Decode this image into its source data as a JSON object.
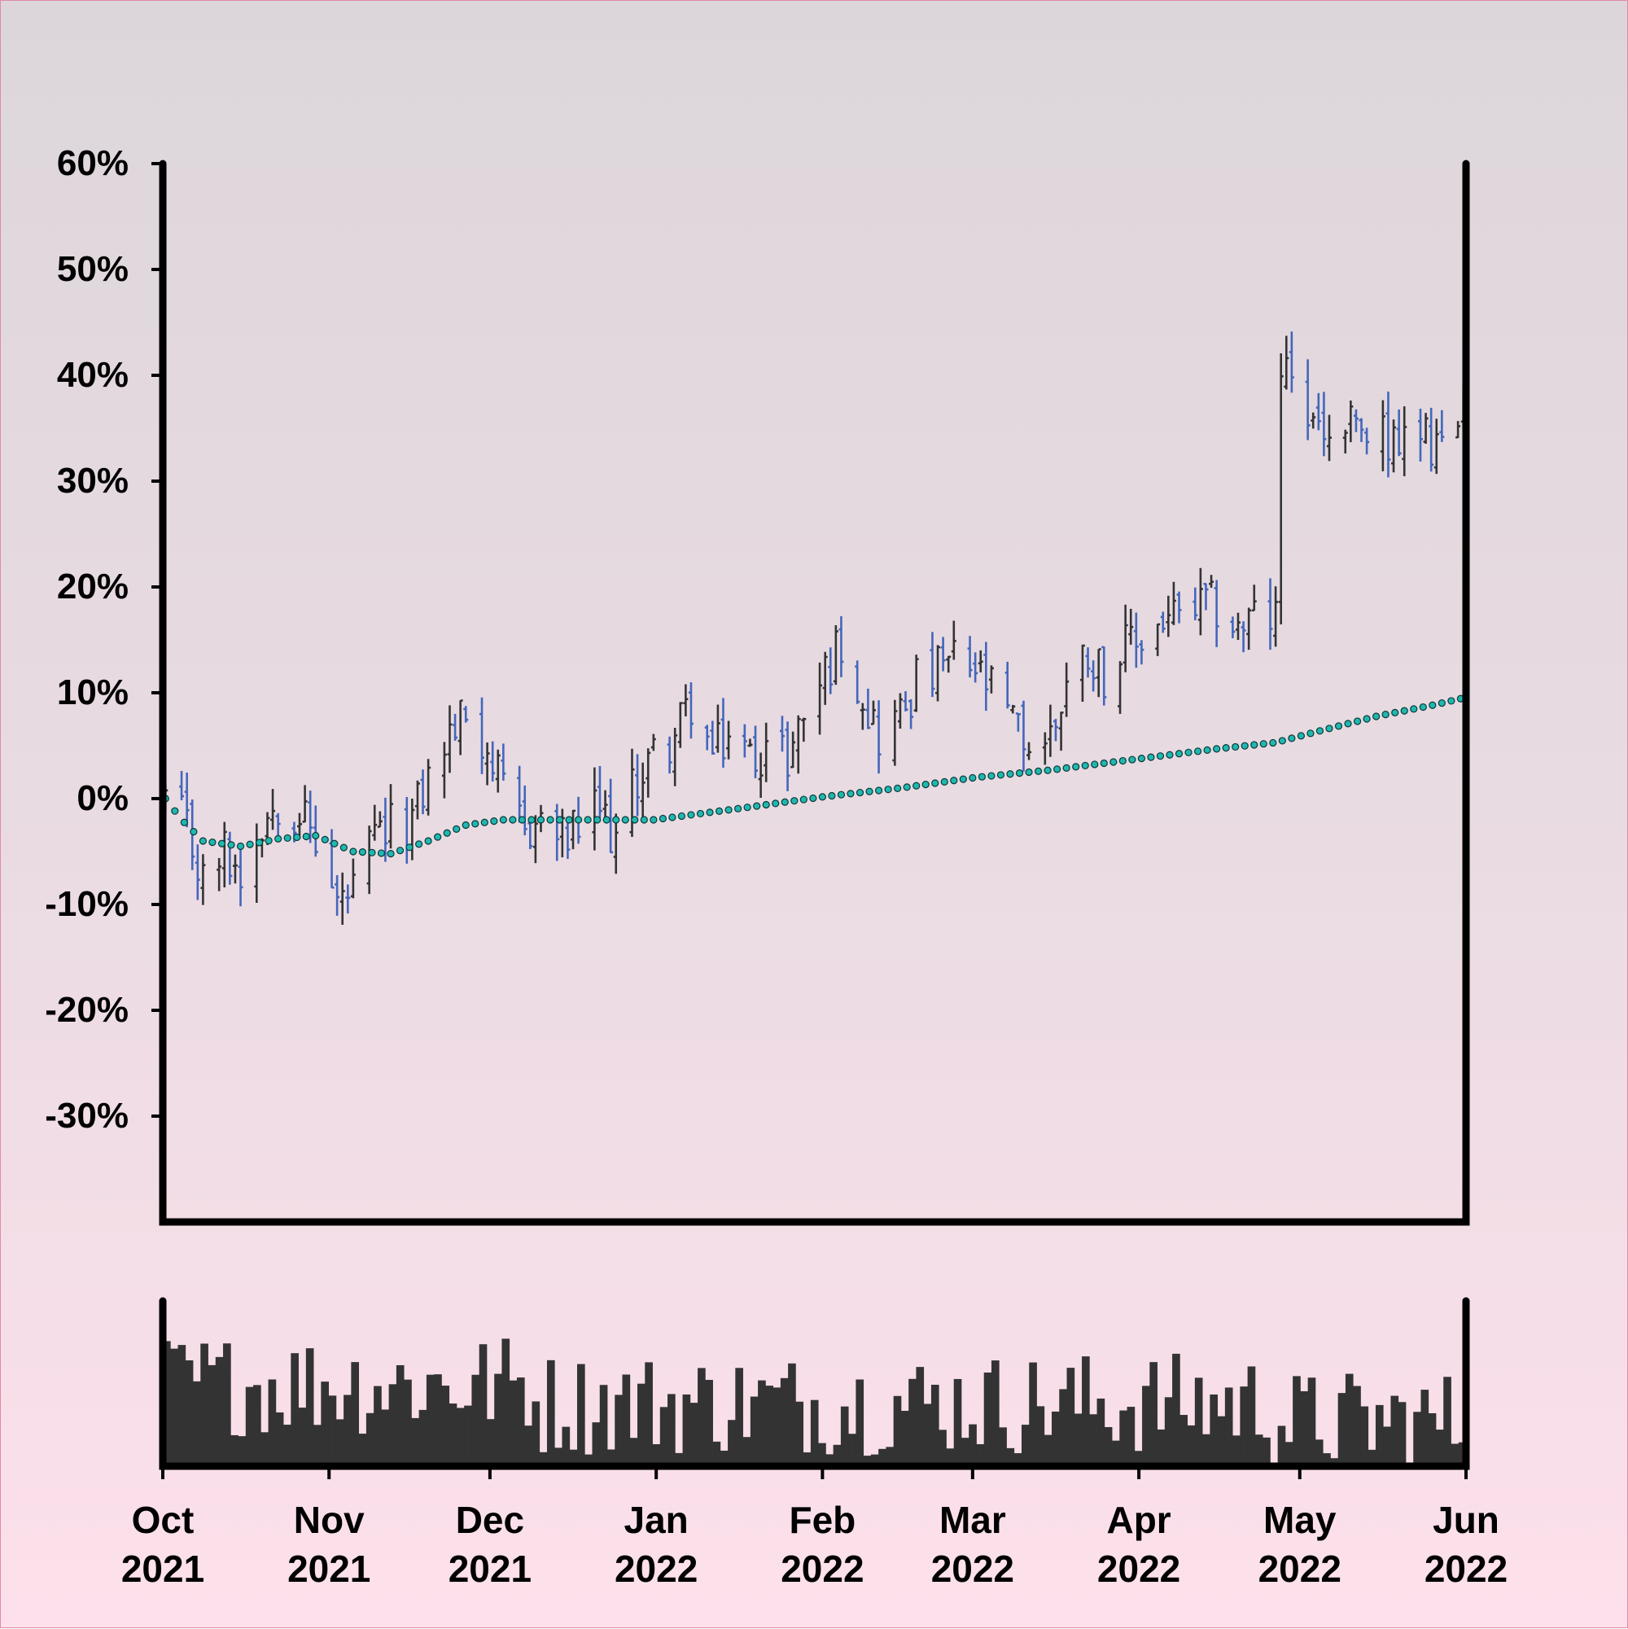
{
  "chart_data": {
    "type": "ohlc",
    "y_axis": {
      "format": "percent",
      "ylim": [
        -40,
        60
      ],
      "ticks": [
        "60%",
        "50%",
        "40%",
        "30%",
        "20%",
        "10%",
        "0%",
        "-10%",
        "-20%",
        "-30%"
      ],
      "tick_values": [
        60,
        50,
        40,
        30,
        20,
        10,
        0,
        -10,
        -20,
        -30
      ]
    },
    "x_axis": {
      "range": [
        "2021-10-01",
        "2022-06-01"
      ],
      "ticks": [
        {
          "date": "2021-10-01",
          "month": "Oct",
          "year": "2021"
        },
        {
          "date": "2021-11-01",
          "month": "Nov",
          "year": "2021"
        },
        {
          "date": "2021-12-01",
          "month": "Dec",
          "year": "2021"
        },
        {
          "date": "2022-01-01",
          "month": "Jan",
          "year": "2022"
        },
        {
          "date": "2022-02-01",
          "month": "Feb",
          "year": "2022"
        },
        {
          "date": "2022-03-01",
          "month": "Mar",
          "year": "2022"
        },
        {
          "date": "2022-04-01",
          "month": "Apr",
          "year": "2022"
        },
        {
          "date": "2022-05-01",
          "month": "May",
          "year": "2022"
        },
        {
          "date": "2022-06-01",
          "month": "Jun",
          "year": "2022"
        }
      ]
    },
    "price_trend": [
      [
        "2021-10-01",
        0
      ],
      [
        "2021-10-05",
        -3
      ],
      [
        "2021-10-08",
        -8
      ],
      [
        "2021-10-12",
        -5
      ],
      [
        "2021-10-15",
        -7
      ],
      [
        "2021-10-19",
        -2
      ],
      [
        "2021-10-22",
        0
      ],
      [
        "2021-10-26",
        -1
      ],
      [
        "2021-10-29",
        -4
      ],
      [
        "2021-11-02",
        -10
      ],
      [
        "2021-11-05",
        -9
      ],
      [
        "2021-11-09",
        -4
      ],
      [
        "2021-11-12",
        -3
      ],
      [
        "2021-11-16",
        -2
      ],
      [
        "2021-11-19",
        2
      ],
      [
        "2021-11-23",
        6
      ],
      [
        "2021-11-26",
        8
      ],
      [
        "2021-11-30",
        5
      ],
      [
        "2021-12-03",
        0
      ],
      [
        "2021-12-07",
        -3
      ],
      [
        "2021-12-10",
        -2
      ],
      [
        "2021-12-14",
        -4
      ],
      [
        "2021-12-17",
        -3
      ],
      [
        "2021-12-21",
        -1
      ],
      [
        "2021-12-24",
        -4
      ],
      [
        "2021-12-28",
        2
      ],
      [
        "2021-12-31",
        4
      ],
      [
        "2022-01-04",
        6
      ],
      [
        "2022-01-07",
        9
      ],
      [
        "2022-01-11",
        4
      ],
      [
        "2022-01-14",
        6
      ],
      [
        "2022-01-18",
        4
      ],
      [
        "2022-01-21",
        5
      ],
      [
        "2022-01-25",
        4
      ],
      [
        "2022-01-28",
        8
      ],
      [
        "2022-02-01",
        12
      ],
      [
        "2022-02-04",
        15
      ],
      [
        "2022-02-08",
        10
      ],
      [
        "2022-02-11",
        6
      ],
      [
        "2022-02-15",
        8
      ],
      [
        "2022-02-18",
        11
      ],
      [
        "2022-02-22",
        12
      ],
      [
        "2022-02-25",
        13
      ],
      [
        "2022-03-01",
        12
      ],
      [
        "2022-03-04",
        10
      ],
      [
        "2022-03-08",
        7
      ],
      [
        "2022-03-11",
        5
      ],
      [
        "2022-03-15",
        6
      ],
      [
        "2022-03-18",
        11
      ],
      [
        "2022-03-22",
        14
      ],
      [
        "2022-03-25",
        12
      ],
      [
        "2022-03-29",
        14
      ],
      [
        "2022-04-01",
        15
      ],
      [
        "2022-04-05",
        17
      ],
      [
        "2022-04-08",
        17
      ],
      [
        "2022-04-12",
        18
      ],
      [
        "2022-04-15",
        18
      ],
      [
        "2022-04-19",
        16
      ],
      [
        "2022-04-22",
        17
      ],
      [
        "2022-04-26",
        17
      ],
      [
        "2022-04-27",
        40
      ],
      [
        "2022-04-29",
        39
      ],
      [
        "2022-05-03",
        35
      ],
      [
        "2022-05-06",
        34
      ],
      [
        "2022-05-10",
        35
      ],
      [
        "2022-05-13",
        34
      ],
      [
        "2022-05-17",
        34
      ],
      [
        "2022-05-20",
        33
      ],
      [
        "2022-05-24",
        34
      ],
      [
        "2022-05-27",
        33
      ],
      [
        "2022-05-31",
        35
      ]
    ],
    "moving_average": [
      [
        "2021-10-01",
        0
      ],
      [
        "2021-10-04",
        -2
      ],
      [
        "2021-10-08",
        -4
      ],
      [
        "2021-10-15",
        -4.5
      ],
      [
        "2021-10-22",
        -3.8
      ],
      [
        "2021-10-29",
        -3.5
      ],
      [
        "2021-11-05",
        -5
      ],
      [
        "2021-11-12",
        -5.2
      ],
      [
        "2021-11-19",
        -4
      ],
      [
        "2021-11-26",
        -2.5
      ],
      [
        "2021-12-03",
        -2
      ],
      [
        "2021-12-17",
        -2
      ],
      [
        "2021-12-31",
        -2
      ],
      [
        "2022-01-15",
        -1
      ],
      [
        "2022-02-01",
        0.2
      ],
      [
        "2022-02-15",
        1
      ],
      [
        "2022-03-01",
        2
      ],
      [
        "2022-03-15",
        2.7
      ],
      [
        "2022-04-01",
        3.8
      ],
      [
        "2022-04-15",
        4.7
      ],
      [
        "2022-04-26",
        5.3
      ],
      [
        "2022-05-05",
        6.5
      ],
      [
        "2022-05-15",
        7.8
      ],
      [
        "2022-05-25",
        8.8
      ],
      [
        "2022-05-31",
        9.5
      ]
    ],
    "colors": {
      "up": "#333333",
      "down": "#4466bb",
      "moving_average_fill": "#1fb8b0",
      "volume": "#333333",
      "axis": "#000000"
    },
    "volume": {
      "relative_range": [
        0,
        1
      ],
      "level": "high in Oct–Nov 2021, moderate Dec–Apr, lower May 2022"
    },
    "grid": false,
    "legend": "none"
  }
}
